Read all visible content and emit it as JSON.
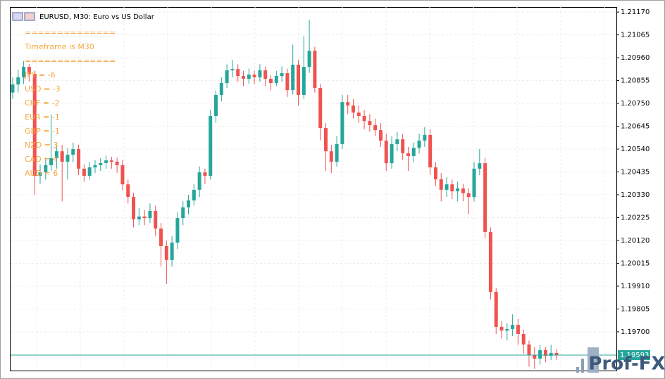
{
  "chart_data": {
    "type": "candlestick",
    "title": "EURUSD, M30:  Euro vs US Dollar",
    "annotations": [
      "==============",
      "Timeframe is M30",
      "==============",
      "JPY = -6",
      "USD = -3",
      "CHF = -2",
      "EUR = -1",
      "GBP = -1",
      "NZD = 3",
      "CAD = 4",
      "AUD = 6"
    ],
    "watermark": "Prof-FX",
    "up_color": "#26a69a",
    "down_color": "#ef5350",
    "annotation_color": "#f5a742",
    "grid": true,
    "ylim": [
      1.19522,
      1.21193
    ],
    "yticks": [
      {
        "value": 1.2117,
        "label": "1.21170"
      },
      1.21065,
      {
        "value": 1.2096,
        "label": "1.20960"
      },
      1.20855,
      {
        "value": 1.2075,
        "label": "1.20750"
      },
      1.20645,
      {
        "value": 1.2054,
        "label": "1.20540"
      },
      1.20435,
      {
        "value": 1.2033,
        "label": "1.20330"
      },
      1.20225,
      {
        "value": 1.2012,
        "label": "1.20120"
      },
      1.20015,
      {
        "value": 1.1991,
        "label": "1.19910"
      },
      1.19805,
      {
        "value": 1.197,
        "label": "1.19700"
      }
    ],
    "last_price": 1.19593,
    "open": [
      1.208,
      1.20837,
      1.2087,
      1.20918,
      1.20886,
      1.20417,
      1.20433,
      1.20466,
      1.20498,
      1.2053,
      1.20482,
      1.20514,
      1.2054,
      1.2045,
      1.20417,
      1.20456,
      1.20466,
      1.20476,
      1.20488,
      1.20482,
      1.20466,
      1.20378,
      1.2032,
      1.20217,
      1.2023,
      1.20223,
      1.20256,
      1.20175,
      1.20094,
      1.2003,
      1.2011,
      1.20223,
      1.20272,
      1.20304,
      1.20353,
      1.20433,
      1.20417,
      1.20692,
      1.20789,
      1.20844,
      1.20902,
      1.20908,
      1.20876,
      1.20863,
      1.20882,
      1.2087,
      1.20902,
      1.20863,
      1.20844,
      1.20876,
      1.20889,
      1.20811,
      1.20928,
      1.20789,
      1.20918,
      1.20992,
      1.20821,
      1.20637,
      1.2053,
      1.20482,
      1.20563,
      1.20756,
      1.2074,
      1.20708,
      1.20692,
      1.20669,
      1.2065,
      1.20627,
      1.20579,
      1.20475,
      1.20563,
      1.20585,
      1.20521,
      1.20508,
      1.20546,
      1.20579,
      1.20605,
      1.20456,
      1.20401,
      1.20353,
      1.20378,
      1.20346,
      1.20359,
      1.20337,
      1.2032,
      1.2045,
      1.20475,
      1.20159,
      1.19884,
      1.19723,
      1.19706,
      1.19713,
      1.19732,
      1.1969,
      1.19642,
      1.19593,
      1.19577,
      1.19616,
      1.1959,
      1.19603
    ],
    "high": [
      1.2087,
      1.20905,
      1.20945,
      1.2093,
      1.209,
      1.2047,
      1.205,
      1.207,
      1.2056,
      1.2056,
      1.20545,
      1.2057,
      1.2056,
      1.2047,
      1.2048,
      1.2049,
      1.205,
      1.2051,
      1.20505,
      1.205,
      1.2049,
      1.204,
      1.2034,
      1.2027,
      1.2026,
      1.2029,
      1.2028,
      1.202,
      1.2012,
      1.2014,
      1.2025,
      1.203,
      1.2033,
      1.2038,
      1.2046,
      1.2045,
      1.2072,
      1.2081,
      1.2087,
      1.2093,
      1.2095,
      1.2093,
      1.209,
      1.2091,
      1.209,
      1.2093,
      1.2092,
      1.2088,
      1.209,
      1.2092,
      1.2091,
      1.2102,
      1.2095,
      1.2106,
      1.21135,
      1.2101,
      1.2084,
      1.2066,
      1.2056,
      1.206,
      1.2079,
      1.2079,
      1.2077,
      1.2074,
      1.2072,
      1.207,
      1.2068,
      1.2066,
      1.2061,
      1.206,
      1.2062,
      1.2061,
      1.2055,
      1.2057,
      1.2061,
      1.2064,
      1.2063,
      1.2048,
      1.2043,
      1.2041,
      1.204,
      1.2039,
      1.2038,
      1.2036,
      1.2048,
      1.2054,
      1.205,
      1.2018,
      1.199,
      1.1975,
      1.1974,
      1.1978,
      1.1976,
      1.1971,
      1.1966,
      1.1963,
      1.1964,
      1.1963,
      1.1964,
      1.1962
    ],
    "low": [
      1.2077,
      1.208,
      1.2084,
      1.2085,
      1.2033,
      1.2038,
      1.204,
      1.2044,
      1.2045,
      1.203,
      1.204,
      1.2048,
      1.2042,
      1.2039,
      1.204,
      1.2043,
      1.2044,
      1.2045,
      1.2045,
      1.2043,
      1.2035,
      1.2029,
      1.2018,
      1.2019,
      1.2019,
      1.202,
      1.2014,
      1.2,
      1.1992,
      1.2,
      1.2008,
      1.2019,
      1.2024,
      1.2028,
      1.2032,
      1.2038,
      1.204,
      1.2066,
      1.2076,
      1.2082,
      1.2087,
      1.2085,
      1.2083,
      1.2084,
      1.2084,
      1.2085,
      1.2083,
      1.2081,
      1.2083,
      1.2085,
      1.2078,
      1.2079,
      1.2074,
      1.2077,
      1.2089,
      1.208,
      1.2058,
      1.2044,
      1.2043,
      1.2046,
      1.2054,
      1.207,
      1.2068,
      1.2066,
      1.2063,
      1.2062,
      1.206,
      1.2055,
      1.2044,
      1.2045,
      1.2053,
      1.2049,
      1.2044,
      1.2048,
      1.2052,
      1.2055,
      1.2042,
      1.2037,
      1.203,
      1.2032,
      1.2031,
      1.203,
      1.203,
      1.2024,
      1.203,
      1.2042,
      1.2013,
      1.1985,
      1.1969,
      1.1967,
      1.1966,
      1.1968,
      1.1964,
      1.196,
      1.1954,
      1.1953,
      1.1955,
      1.1956,
      1.1957,
      1.1957
    ],
    "close": [
      1.20837,
      1.2087,
      1.20918,
      1.20886,
      1.20417,
      1.20433,
      1.20466,
      1.20498,
      1.2053,
      1.20482,
      1.20514,
      1.2054,
      1.2045,
      1.20417,
      1.20456,
      1.20466,
      1.20476,
      1.20488,
      1.20482,
      1.20466,
      1.20378,
      1.2032,
      1.20217,
      1.2023,
      1.20223,
      1.20256,
      1.20175,
      1.20094,
      1.2003,
      1.2011,
      1.20223,
      1.20272,
      1.20304,
      1.20353,
      1.20433,
      1.20417,
      1.20692,
      1.20789,
      1.20844,
      1.20902,
      1.20908,
      1.20876,
      1.20863,
      1.20882,
      1.2087,
      1.20902,
      1.20863,
      1.20844,
      1.20876,
      1.20889,
      1.20811,
      1.20928,
      1.20789,
      1.20918,
      1.20992,
      1.20821,
      1.20637,
      1.2053,
      1.20482,
      1.20563,
      1.20756,
      1.2074,
      1.20708,
      1.20692,
      1.20669,
      1.2065,
      1.20627,
      1.20579,
      1.20475,
      1.20563,
      1.20585,
      1.20521,
      1.20508,
      1.20546,
      1.20579,
      1.20605,
      1.20456,
      1.20401,
      1.20353,
      1.20378,
      1.20346,
      1.20359,
      1.20337,
      1.2032,
      1.2045,
      1.20475,
      1.20159,
      1.19884,
      1.19723,
      1.19706,
      1.19713,
      1.19732,
      1.1969,
      1.19642,
      1.19593,
      1.19577,
      1.19616,
      1.1959,
      1.19603,
      1.19593
    ]
  }
}
